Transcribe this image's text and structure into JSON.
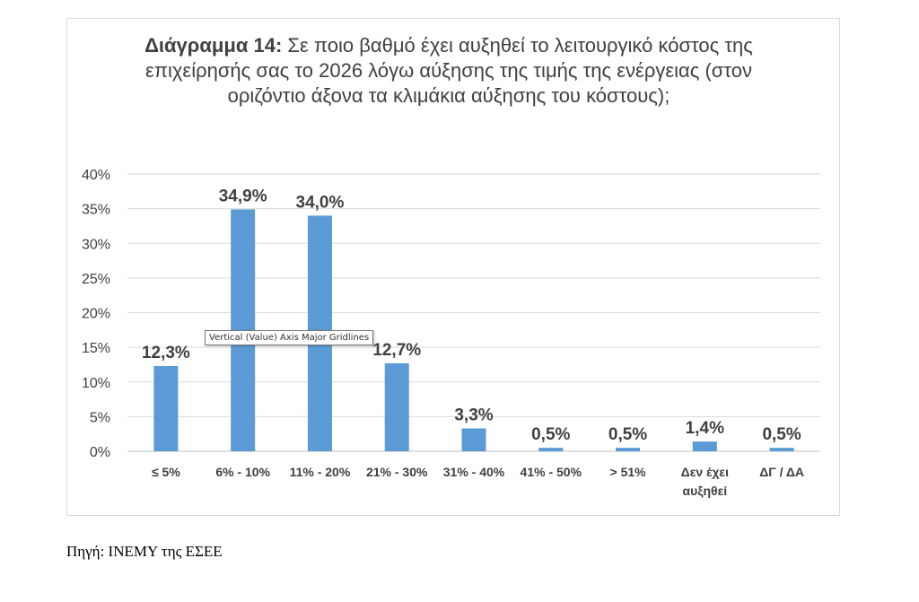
{
  "chart_data": {
    "type": "bar",
    "title_lead": "Διάγραμμα 14:",
    "title_rest": "Σε ποιο βαθμό έχει αυξηθεί το λειτουργικό κόστος της επιχείρησής σας το 2026 λόγω αύξησης της τιμής της ενέργειας (στον οριζόντιο άξονα τα κλιμάκια αύξησης του κόστους);",
    "categories": [
      [
        "≤ 5%"
      ],
      [
        "6% - 10%"
      ],
      [
        "11% - 20%"
      ],
      [
        "21% - 30%"
      ],
      [
        "31% - 40%"
      ],
      [
        "41% - 50%"
      ],
      [
        "> 51%"
      ],
      [
        "Δεν έχει",
        "αυξηθεί"
      ],
      [
        "ΔΓ / ΔΑ"
      ]
    ],
    "values": [
      12.3,
      34.9,
      34.0,
      12.7,
      3.3,
      0.5,
      0.5,
      1.4,
      0.5
    ],
    "data_labels": [
      "12,3%",
      "34,9%",
      "34,0%",
      "12,7%",
      "3,3%",
      "0,5%",
      "0,5%",
      "1,4%",
      "0,5%"
    ],
    "y_ticks": [
      "0%",
      "5%",
      "10%",
      "15%",
      "20%",
      "25%",
      "30%",
      "35%",
      "40%"
    ],
    "ylim": [
      0,
      40
    ],
    "grid": true,
    "bar_color": "#5b9bd5"
  },
  "tooltip": "Vertical (Value) Axis Major Gridlines",
  "source": "Πηγή: ΙΝΕΜΥ της ΕΣΕΕ"
}
